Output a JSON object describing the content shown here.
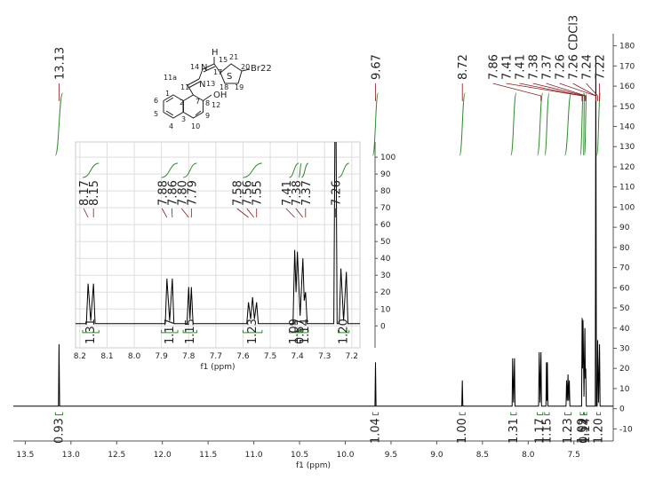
{
  "chart_data": {
    "type": "line",
    "xlabel": "f1 (ppm)",
    "xlim": [
      13.63,
      7.07
    ],
    "ylim": [
      -16,
      186
    ],
    "xticks": [
      13.5,
      {
        "value": 13,
        "label": "13.0"
      },
      12.5,
      {
        "value": 12,
        "label": "12.0"
      },
      11.5,
      {
        "value": 11,
        "label": "11.0"
      },
      10.5,
      {
        "value": 10,
        "label": "10.0"
      },
      9.5,
      {
        "value": 9,
        "label": "9.0"
      },
      8.5,
      {
        "value": 8,
        "label": "8.0"
      },
      7.5
    ],
    "yticks": [
      -10,
      0,
      10,
      20,
      30,
      40,
      50,
      60,
      70,
      80,
      90,
      100,
      110,
      120,
      130,
      140,
      150,
      160,
      170,
      180
    ],
    "label_color": "#8b1a1a",
    "integral_color": "#2e8b2e",
    "series": [
      {
        "color": "#000000",
        "x": [
          13.63,
          13.136,
          13.13,
          13.124,
          9.676,
          9.67,
          9.664,
          8.726,
          8.72,
          8.714,
          8.176,
          8.17,
          8.16,
          8.15,
          8.144,
          7.886,
          7.88,
          7.87,
          7.86,
          7.854,
          7.806,
          7.8,
          7.795,
          7.79,
          7.784,
          7.586,
          7.58,
          7.572,
          7.565,
          7.558,
          7.55,
          7.544,
          7.416,
          7.41,
          7.405,
          7.4,
          7.39,
          7.38,
          7.375,
          7.37,
          7.364,
          7.266,
          7.26,
          7.254,
          7.246,
          7.24,
          7.23,
          7.22,
          7.214,
          7.07
        ],
        "values": [
          1.3,
          1.3,
          32,
          1.3,
          1.3,
          23,
          1.3,
          1.3,
          14,
          1.3,
          1.3,
          25,
          3,
          25,
          1.3,
          1.3,
          28,
          3,
          28,
          1.3,
          1.3,
          23,
          4,
          23,
          1.3,
          1.3,
          14,
          4,
          17,
          4,
          14,
          1.3,
          1.3,
          45,
          20,
          44,
          6,
          40,
          15,
          20,
          1.3,
          1.3,
          175,
          1.3,
          1.3,
          34,
          3,
          32,
          1.3,
          1.3
        ]
      }
    ],
    "peak_labels": [
      13.13,
      9.67,
      8.72,
      7.86,
      7.41,
      7.41,
      7.38,
      7.37,
      7.26,
      {
        "value": 7.26,
        "label": "7.26 CDCl3"
      },
      7.24,
      7.22
    ],
    "integrals": [
      {
        "range": [
          13.17,
          13.09
        ],
        "value": 0.93
      },
      {
        "range": [
          9.7,
          9.64
        ],
        "value": 1.04
      },
      {
        "range": [
          8.75,
          8.69
        ],
        "value": 1,
        "label": "1.00"
      },
      {
        "range": [
          8.19,
          8.13
        ],
        "value": 1.31
      },
      {
        "range": [
          7.9,
          7.84
        ],
        "value": 1.17
      },
      {
        "range": [
          7.82,
          7.77
        ],
        "value": 1.15
      },
      {
        "range": [
          7.6,
          7.53
        ],
        "value": 1.23
      },
      {
        "range": [
          7.43,
          7.395
        ],
        "value": 1.09
      },
      {
        "range": [
          7.395,
          7.385
        ],
        "value": 0.57
      },
      {
        "range": [
          7.385,
          7.36
        ],
        "value": 1.14
      },
      {
        "range": [
          7.25,
          7.21
        ],
        "value": 1.2,
        "label": "1.20"
      }
    ],
    "inset": {
      "xlabel": "f1 (ppm)",
      "xlim": [
        8.216,
        7.17
      ],
      "ylim": [
        -13,
        109
      ],
      "xticks": [
        8.2,
        8.1,
        {
          "value": 8,
          "label": "8.0"
        },
        7.9,
        7.8,
        7.7,
        7.6,
        7.5,
        7.4,
        7.3,
        7.2
      ],
      "yticks": [
        0,
        10,
        20,
        30,
        40,
        50,
        60,
        70,
        80,
        90,
        100
      ],
      "grid": true,
      "peak_labels": [
        8.17,
        8.15,
        7.88,
        7.86,
        {
          "value": 7.8,
          "label": "7.80"
        },
        7.79,
        7.58,
        7.56,
        7.55,
        7.41,
        7.38,
        7.37,
        7.26
      ]
    },
    "structure": {
      "atoms": [
        "H",
        "14",
        "N",
        "15",
        "21",
        "20",
        "Br22",
        "11a",
        "N",
        "13",
        "17",
        "S",
        "18",
        "19",
        "1",
        "11",
        "6",
        "2",
        "7",
        "OH",
        "8",
        "12",
        "5",
        "9",
        "4",
        "3",
        "10"
      ]
    }
  }
}
